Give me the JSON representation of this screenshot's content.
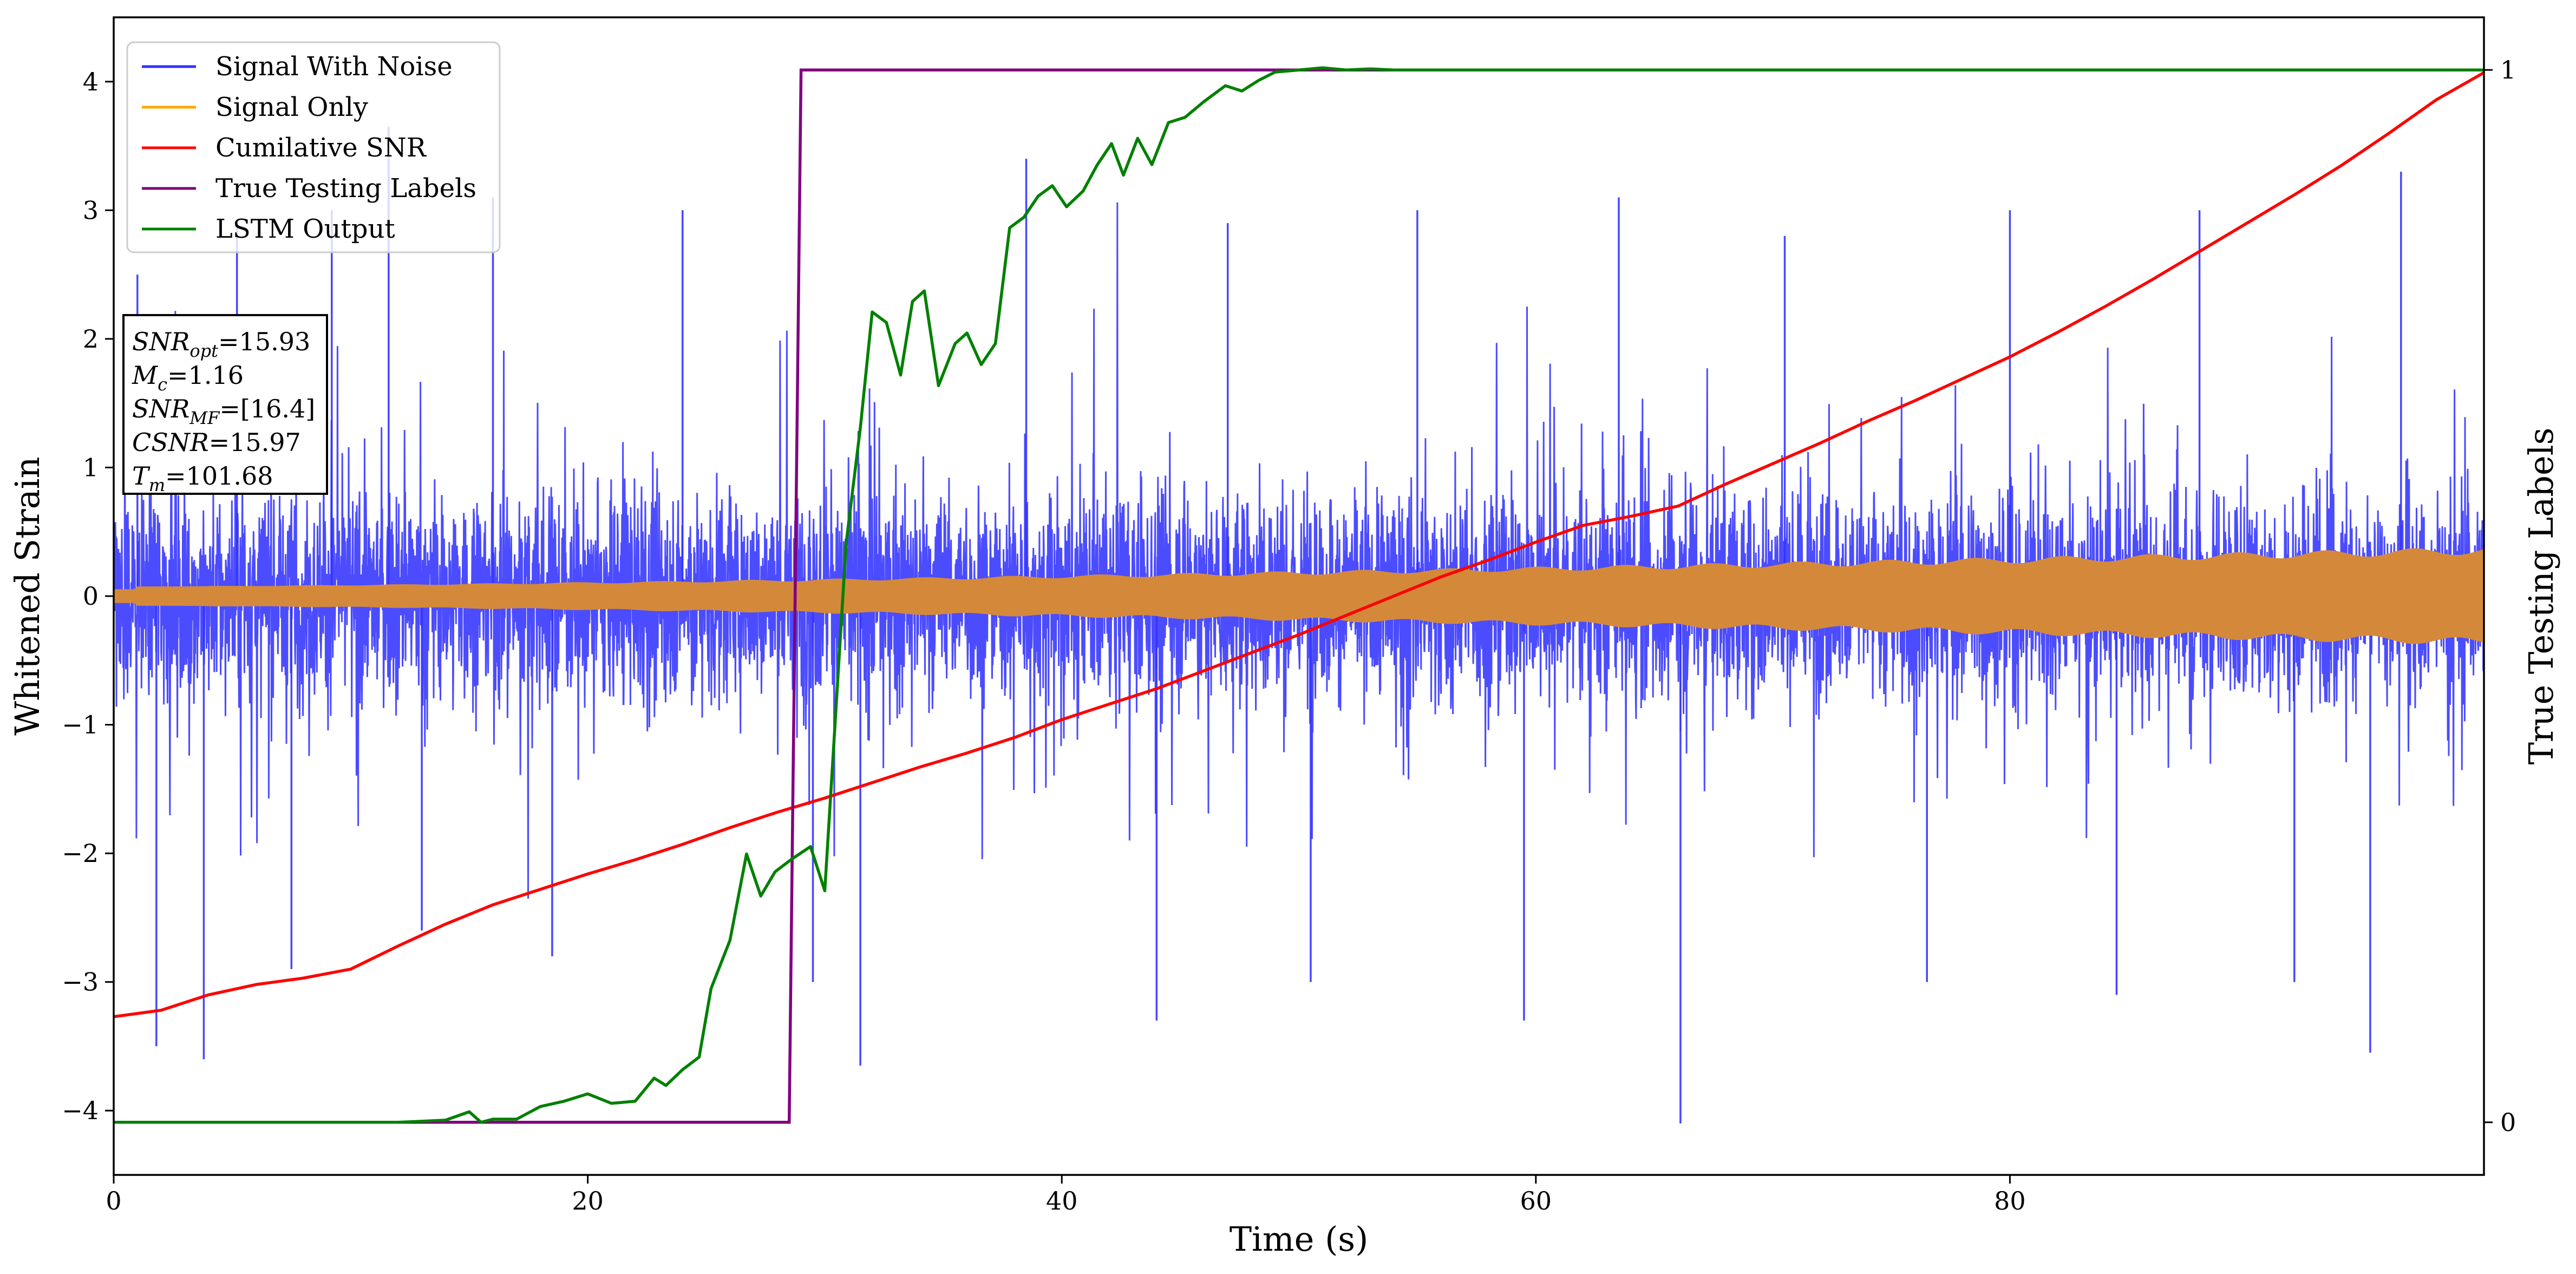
{
  "chart_data": {
    "type": "line",
    "title": "",
    "xlabel": "Time (s)",
    "ylabel": "Whitened Strain",
    "ylabel_right": "True Testing Labels",
    "xlim": [
      0,
      100
    ],
    "ylim": [
      -4.5,
      4.5
    ],
    "ylim_right": [
      -0.05,
      1.05
    ],
    "x_ticks": [
      0,
      20,
      40,
      60,
      80
    ],
    "x_tick_labels": [
      "0",
      "20",
      "40",
      "60",
      "80"
    ],
    "y_ticks": [
      -4,
      -3,
      -2,
      -1,
      0,
      1,
      2,
      3,
      4
    ],
    "y_tick_labels": [
      "−4",
      "−3",
      "−2",
      "−1",
      "0",
      "1",
      "2",
      "3",
      "4"
    ],
    "y_right_ticks": [
      0,
      1
    ],
    "y_right_tick_labels": [
      "0",
      "1"
    ],
    "grid": false,
    "legend_position": "top-left",
    "series": [
      {
        "name": "Signal With Noise",
        "color": "#3333ff",
        "axis": "left",
        "kind": "noise",
        "x": [
          0,
          100
        ],
        "band": [
          -1.3,
          1.3
        ],
        "spikes": [
          {
            "x": 1.0,
            "y": 2.5
          },
          {
            "x": 1.8,
            "y": -3.5
          },
          {
            "x": 3.8,
            "y": -3.6
          },
          {
            "x": 5.2,
            "y": 2.9
          },
          {
            "x": 7.5,
            "y": -2.9
          },
          {
            "x": 9.2,
            "y": 3.0
          },
          {
            "x": 11.6,
            "y": 3.65
          },
          {
            "x": 13.0,
            "y": -2.6
          },
          {
            "x": 16.0,
            "y": 3.1
          },
          {
            "x": 18.5,
            "y": -2.8
          },
          {
            "x": 24.0,
            "y": 3.0
          },
          {
            "x": 29.5,
            "y": -3.0
          },
          {
            "x": 31.5,
            "y": -3.65
          },
          {
            "x": 38.5,
            "y": 3.4
          },
          {
            "x": 44.0,
            "y": -3.3
          },
          {
            "x": 47.0,
            "y": 2.9
          },
          {
            "x": 50.5,
            "y": -3.0
          },
          {
            "x": 55.0,
            "y": 3.0
          },
          {
            "x": 59.5,
            "y": -3.3
          },
          {
            "x": 63.5,
            "y": 3.1
          },
          {
            "x": 66.1,
            "y": -4.1
          },
          {
            "x": 70.5,
            "y": 2.8
          },
          {
            "x": 76.5,
            "y": -3.0
          },
          {
            "x": 80.0,
            "y": 3.0
          },
          {
            "x": 84.5,
            "y": -3.1
          },
          {
            "x": 88.0,
            "y": 3.0
          },
          {
            "x": 92.0,
            "y": -3.0
          },
          {
            "x": 95.2,
            "y": -3.55
          },
          {
            "x": 96.5,
            "y": 3.3
          }
        ]
      },
      {
        "name": "Signal Only",
        "color": "#ffa500",
        "axis": "left",
        "kind": "chirp",
        "x": [
          0,
          100
        ],
        "amplitude": [
          0.07,
          0.35
        ]
      },
      {
        "name": "Cumilative SNR",
        "color": "#ff0000",
        "axis": "left",
        "kind": "line",
        "x": [
          0,
          2,
          4,
          6,
          8,
          10,
          12,
          14,
          16,
          18,
          20,
          22,
          24,
          26,
          28,
          30,
          32,
          34,
          36,
          38,
          40,
          42,
          44,
          46,
          48,
          50,
          52,
          54,
          56,
          58,
          60,
          62,
          64,
          66,
          68,
          70,
          72,
          74,
          76,
          78,
          80,
          82,
          84,
          86,
          88,
          90,
          92,
          94,
          96,
          98,
          100
        ],
        "y": [
          -3.27,
          -3.22,
          -3.1,
          -3.02,
          -2.97,
          -2.9,
          -2.72,
          -2.55,
          -2.4,
          -2.28,
          -2.16,
          -2.05,
          -1.93,
          -1.8,
          -1.68,
          -1.57,
          -1.45,
          -1.33,
          -1.22,
          -1.1,
          -0.96,
          -0.84,
          -0.72,
          -0.58,
          -0.44,
          -0.3,
          -0.15,
          0.0,
          0.15,
          0.28,
          0.42,
          0.55,
          0.62,
          0.7,
          0.87,
          1.03,
          1.19,
          1.36,
          1.52,
          1.69,
          1.86,
          2.05,
          2.25,
          2.46,
          2.68,
          2.9,
          3.12,
          3.35,
          3.6,
          3.86,
          4.07
        ]
      },
      {
        "name": "True Testing Labels",
        "color": "#800080",
        "axis": "right",
        "kind": "step",
        "x": [
          0,
          28.5,
          29.0,
          100
        ],
        "y": [
          0,
          0,
          1,
          1
        ]
      },
      {
        "name": "LSTM Output",
        "color": "#008000",
        "axis": "right",
        "kind": "line",
        "x": [
          0,
          12,
          14,
          15,
          15.5,
          16,
          17,
          18,
          19,
          20,
          21,
          22,
          22.8,
          23.3,
          24,
          24.7,
          25.2,
          26,
          26.7,
          27.3,
          27.9,
          28.6,
          29.4,
          30.0,
          30.4,
          30.9,
          31.5,
          32.0,
          32.6,
          33.2,
          33.7,
          34.2,
          34.8,
          35.5,
          36.0,
          36.6,
          37.2,
          37.8,
          38.4,
          39.0,
          39.6,
          40.2,
          40.9,
          41.5,
          42.1,
          42.6,
          43.2,
          43.8,
          44.5,
          45.2,
          46.0,
          46.9,
          47.6,
          48.3,
          49.0,
          50.0,
          51.0,
          52.0,
          53.0,
          54.0,
          56.0,
          58.0,
          60.0,
          70.0,
          80.0,
          90.0,
          100.0
        ],
        "y": [
          0.0,
          0.0,
          0.002,
          0.01,
          0.0,
          0.003,
          0.003,
          0.015,
          0.02,
          0.027,
          0.018,
          0.02,
          0.042,
          0.035,
          0.05,
          0.062,
          0.127,
          0.173,
          0.255,
          0.215,
          0.238,
          0.25,
          0.262,
          0.22,
          0.366,
          0.55,
          0.66,
          0.77,
          0.76,
          0.71,
          0.78,
          0.79,
          0.7,
          0.74,
          0.75,
          0.72,
          0.74,
          0.85,
          0.86,
          0.88,
          0.89,
          0.87,
          0.885,
          0.91,
          0.93,
          0.9,
          0.935,
          0.91,
          0.95,
          0.955,
          0.97,
          0.985,
          0.98,
          0.99,
          0.998,
          1.0,
          1.002,
          1.0,
          1.001,
          1.0,
          1.0,
          1.0,
          1.0,
          1.0,
          1.0,
          1.0,
          1.0
        ]
      }
    ],
    "annotation": {
      "lines": [
        {
          "var": "SNR",
          "sub": "opt",
          "value": "=15.93"
        },
        {
          "var": "M",
          "sub": "c",
          "value": "=1.16"
        },
        {
          "var": "SNR",
          "sub": "MF",
          "value": "=[16.4]"
        },
        {
          "var": "CSNR",
          "sub": "",
          "value": "=15.97"
        },
        {
          "var": "T",
          "sub": "m",
          "value": "=101.68"
        }
      ]
    }
  }
}
